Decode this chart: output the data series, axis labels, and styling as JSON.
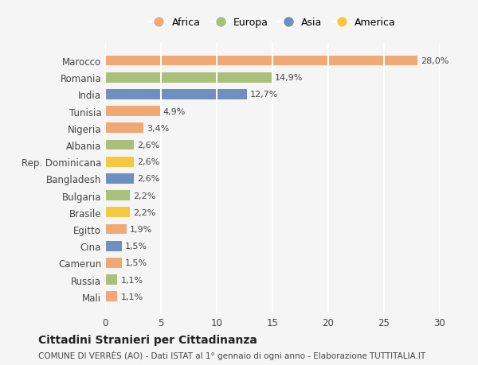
{
  "categories": [
    "Mali",
    "Russia",
    "Camerun",
    "Cina",
    "Egitto",
    "Brasile",
    "Bulgaria",
    "Bangladesh",
    "Rep. Dominicana",
    "Albania",
    "Nigeria",
    "Tunisia",
    "India",
    "Romania",
    "Marocco"
  ],
  "values": [
    1.1,
    1.1,
    1.5,
    1.5,
    1.9,
    2.2,
    2.2,
    2.6,
    2.6,
    2.6,
    3.4,
    4.9,
    12.7,
    14.9,
    28.0
  ],
  "colors": [
    "#F0A875",
    "#A8C07A",
    "#F0A875",
    "#6E8FC0",
    "#F0A875",
    "#F5C842",
    "#A8C07A",
    "#6E8FC0",
    "#F5C842",
    "#A8C07A",
    "#F0A875",
    "#F0A875",
    "#6E8FC0",
    "#A8C07A",
    "#F0A875"
  ],
  "labels": [
    "1,1%",
    "1,1%",
    "1,5%",
    "1,5%",
    "1,9%",
    "2,2%",
    "2,2%",
    "2,6%",
    "2,6%",
    "2,6%",
    "3,4%",
    "4,9%",
    "12,7%",
    "14,9%",
    "28,0%"
  ],
  "legend_labels": [
    "Africa",
    "Europa",
    "Asia",
    "America"
  ],
  "legend_colors": [
    "#F0A875",
    "#A8C07A",
    "#6E8FC0",
    "#F5C842"
  ],
  "title": "Cittadini Stranieri per Cittadinanza",
  "subtitle": "COMUNE DI VERRÈS (AO) - Dati ISTAT al 1° gennaio di ogni anno - Elaborazione TUTTITALIA.IT",
  "xlim": [
    0,
    30
  ],
  "xticks": [
    0,
    5,
    10,
    15,
    20,
    25,
    30
  ],
  "background_color": "#f5f5f5",
  "grid_color": "#ffffff",
  "bar_height": 0.6
}
